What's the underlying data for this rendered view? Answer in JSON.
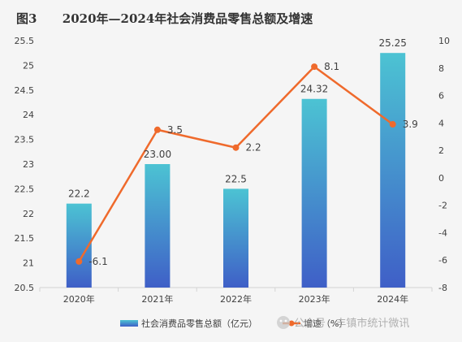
{
  "chart_data": {
    "type": "bar",
    "title": "图3      2020年—2024年社会消费品零售总额及增速",
    "categories": [
      "2020年",
      "2021年",
      "2022年",
      "2023年",
      "2024年"
    ],
    "series": [
      {
        "name": "社会消费品零售总额（亿元）",
        "type": "bar",
        "axis": "left",
        "values": [
          22.2,
          23.0,
          22.5,
          24.32,
          25.25
        ],
        "labels": [
          "22.2",
          "23.00",
          "22.5",
          "24.32",
          "25.25"
        ]
      },
      {
        "name": "增速（%）",
        "type": "line",
        "axis": "right",
        "values": [
          -6.1,
          3.5,
          2.2,
          8.1,
          3.9
        ],
        "labels": [
          "-6.1",
          "3.5",
          "2.2",
          "8.1",
          "3.9"
        ]
      }
    ],
    "y_left": {
      "min": 20.5,
      "max": 25.5,
      "step": 0.5,
      "tick_labels": [
        "20.5",
        "21",
        "21.5",
        "22",
        "22.5",
        "23",
        "23.5",
        "24",
        "24.5",
        "25",
        "25.5"
      ]
    },
    "y_right": {
      "min": -8,
      "max": 10,
      "step": 2,
      "tick_labels": [
        "-8",
        "-6",
        "-4",
        "-2",
        "0",
        "2",
        "4",
        "6",
        "8",
        "10"
      ]
    },
    "grid": false,
    "legend_position": "bottom",
    "colors": {
      "bar_top": "#4cc3d3",
      "bar_bottom": "#3f5fc7",
      "line": "#ef6a2c",
      "axis": "#d4d4d4",
      "text": "#404040",
      "title": "#333333"
    }
  },
  "watermark": {
    "text": "公众号 · 丰镇市统计微讯"
  }
}
